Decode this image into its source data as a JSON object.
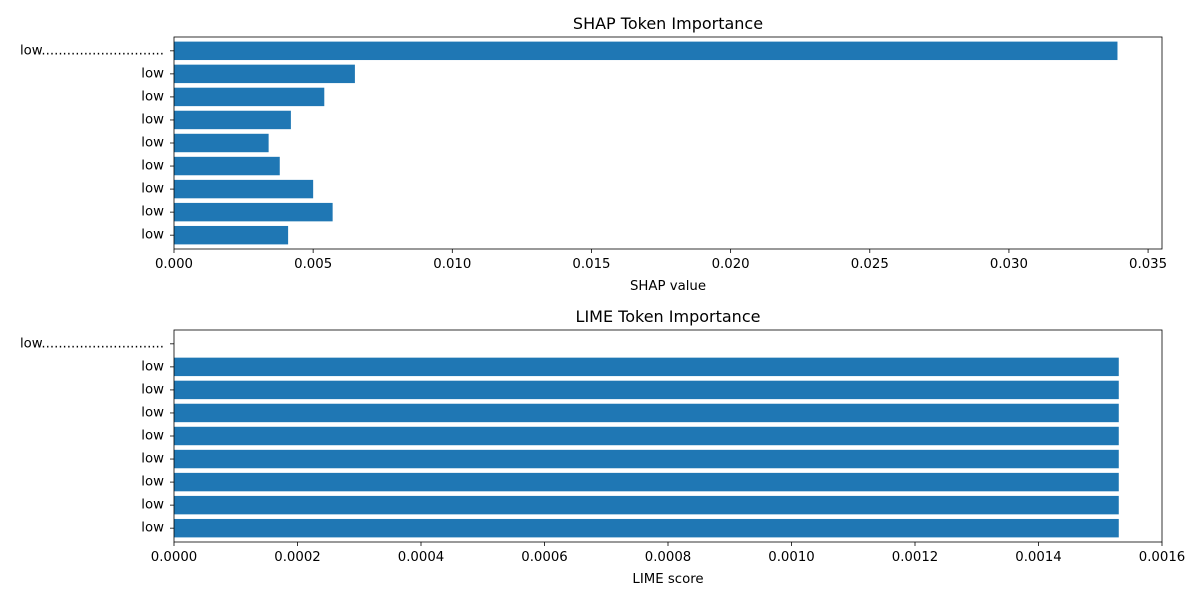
{
  "chart_data": [
    {
      "type": "bar",
      "orientation": "horizontal",
      "title": "SHAP Token Importance",
      "xlabel": "SHAP value",
      "ylabel": "",
      "categories": [
        "low.............................",
        "low",
        "low",
        "low",
        "low",
        "low",
        "low",
        "low",
        "low"
      ],
      "values": [
        0.0339,
        0.0065,
        0.0054,
        0.0042,
        0.0034,
        0.0038,
        0.005,
        0.0057,
        0.0041
      ],
      "xlim": [
        0,
        0.0355
      ],
      "xticks": [
        0.0,
        0.005,
        0.01,
        0.015,
        0.02,
        0.025,
        0.03,
        0.035
      ],
      "xtick_labels": [
        "0.000",
        "0.005",
        "0.010",
        "0.015",
        "0.020",
        "0.025",
        "0.030",
        "0.035"
      ],
      "grid": false,
      "color": "#1f77b4"
    },
    {
      "type": "bar",
      "orientation": "horizontal",
      "title": "LIME Token Importance",
      "xlabel": "LIME score",
      "ylabel": "",
      "categories": [
        "low.............................",
        "low",
        "low",
        "low",
        "low",
        "low",
        "low",
        "low",
        "low"
      ],
      "values": [
        0.0,
        0.00153,
        0.00153,
        0.00153,
        0.00153,
        0.00153,
        0.00153,
        0.00153,
        0.00153
      ],
      "xlim": [
        0,
        0.0016
      ],
      "xticks": [
        0.0,
        0.0002,
        0.0004,
        0.0006,
        0.0008,
        0.001,
        0.0012,
        0.0014,
        0.0016
      ],
      "xtick_labels": [
        "0.0000",
        "0.0002",
        "0.0004",
        "0.0006",
        "0.0008",
        "0.0010",
        "0.0012",
        "0.0014",
        "0.0016"
      ],
      "grid": false,
      "color": "#1f77b4"
    }
  ]
}
